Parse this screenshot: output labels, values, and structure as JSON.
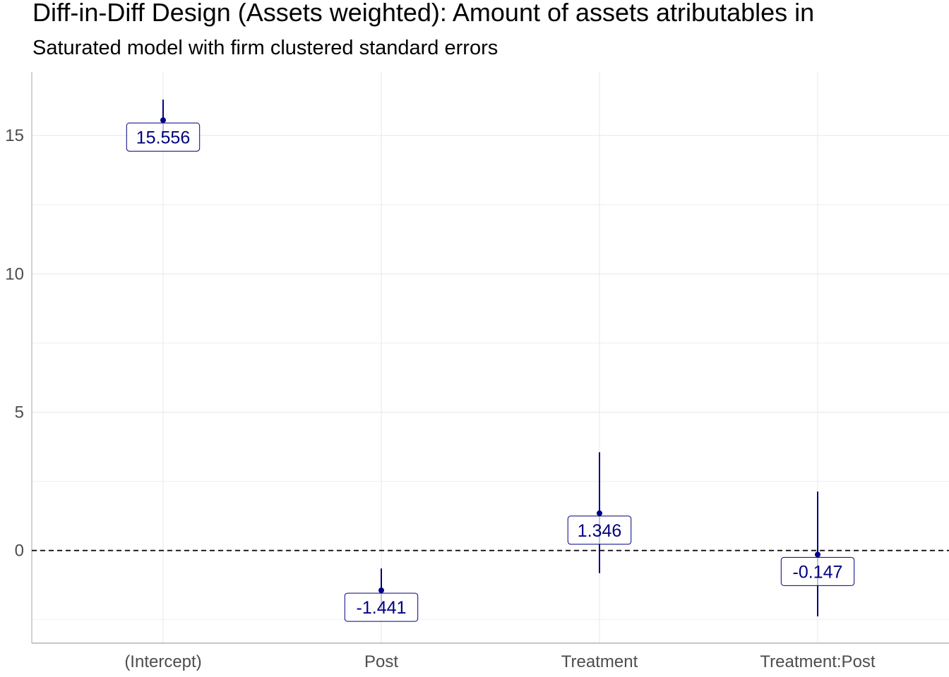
{
  "chart_data": {
    "type": "scatter",
    "title": "Diff-in-Diff Design (Assets weighted): Amount of assets atributables in",
    "subtitle": "Saturated model with firm clustered standard errors",
    "xlabel": "",
    "ylabel": "",
    "categories": [
      "(Intercept)",
      "Post",
      "Treatment",
      "Treatment:Post"
    ],
    "estimates": [
      15.556,
      -1.441,
      1.346,
      -0.147
    ],
    "estimate_labels": [
      "15.556",
      "-1.441",
      "1.346",
      "-0.147"
    ],
    "ci_low": [
      15.0,
      -2.15,
      -0.82,
      -2.38
    ],
    "ci_high": [
      16.3,
      -0.65,
      3.55,
      2.13
    ],
    "ylim": [
      -3.35,
      17.3
    ],
    "yticks": [
      0,
      5,
      10,
      15
    ],
    "ytick_labels": [
      "0",
      "5",
      "10",
      "15"
    ],
    "reference_line": 0,
    "grid": true,
    "legend": "none",
    "colors": {
      "point": "#000080",
      "errorbar": "#000080",
      "label_text": "#000080",
      "label_border": "#000080",
      "grid": "#ebebeb",
      "axis": "#b3b3b3",
      "reference_line": "#000000"
    }
  }
}
